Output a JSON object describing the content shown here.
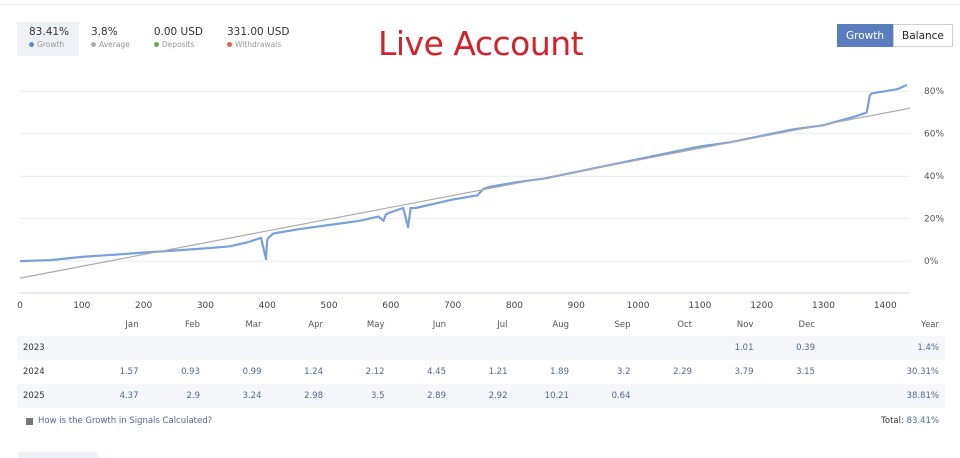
{
  "stats": [
    {
      "value": "83.41%",
      "label": "Growth",
      "color": "#5a8fd8"
    },
    {
      "value": "3.8%",
      "label": "Average",
      "color": "#aaaaaa"
    },
    {
      "value": "0.00 USD",
      "label": "Deposits",
      "color": "#6aa84f"
    },
    {
      "value": "331.00 USD",
      "label": "Withdrawals",
      "color": "#e0624b"
    }
  ],
  "title": "Live Account",
  "toggle": {
    "growth": "Growth",
    "balance": "Balance"
  },
  "chart_data": {
    "type": "line",
    "x_ticks": [
      "0",
      "100",
      "200",
      "300",
      "400",
      "500",
      "600",
      "700",
      "800",
      "900",
      "1000",
      "1100",
      "1200",
      "1300",
      "1400"
    ],
    "y_ticks": [
      "0%",
      "20%",
      "40%",
      "60%",
      "80%"
    ],
    "xlim": [
      0,
      1440
    ],
    "ylim": [
      -15,
      90
    ],
    "series": [
      {
        "color": "#7aa0dc",
        "x": [
          0,
          50,
          100,
          150,
          200,
          250,
          300,
          340,
          370,
          390,
          398,
          400,
          402,
          410,
          450,
          500,
          550,
          580,
          588,
          592,
          600,
          620,
          628,
          632,
          640,
          700,
          740,
          750,
          760,
          800,
          850,
          900,
          950,
          1000,
          1050,
          1100,
          1150,
          1200,
          1250,
          1300,
          1350,
          1370,
          1375,
          1378,
          1400,
          1420,
          1435
        ],
        "y": [
          0,
          0.5,
          2,
          3,
          4,
          5,
          6,
          7,
          9,
          11,
          1,
          10,
          11,
          13,
          15,
          17,
          19,
          21,
          19,
          22,
          23,
          25,
          16,
          25,
          25,
          29,
          31,
          34,
          35,
          37,
          39,
          42,
          45,
          48,
          51,
          54,
          56,
          59,
          62,
          64,
          68,
          70,
          78,
          79,
          80,
          81,
          83
        ]
      },
      {
        "color": "#aaaaaa",
        "x": [
          0,
          1440
        ],
        "y": [
          -8,
          72
        ]
      }
    ]
  },
  "table": {
    "months": [
      "Jan",
      "Feb",
      "Mar",
      "Apr",
      "May",
      "Jun",
      "Jul",
      "Aug",
      "Sep",
      "Oct",
      "Nov",
      "Dec"
    ],
    "total_header": "Year",
    "rows": [
      {
        "year": "2023",
        "vals": [
          "",
          "",
          "",
          "",
          "",
          "",
          "",
          "",
          "",
          "",
          "1.01",
          "0.39"
        ],
        "total": "1.4%"
      },
      {
        "year": "2024",
        "vals": [
          "1.57",
          "0.93",
          "0.99",
          "1.24",
          "2.12",
          "4.45",
          "1.21",
          "1.89",
          "3.2",
          "2.29",
          "3.79",
          "3.15"
        ],
        "total": "30.31%"
      },
      {
        "year": "2025",
        "vals": [
          "4.37",
          "2.9",
          "3.24",
          "2.98",
          "3.5",
          "2.89",
          "2.92",
          "10.21",
          "0.64",
          "",
          "",
          ""
        ],
        "total": "38.81%"
      }
    ]
  },
  "footer": {
    "help_link": "How is the Growth in Signals Calculated?",
    "total_label": "Total:",
    "total_value": "83.41%"
  }
}
